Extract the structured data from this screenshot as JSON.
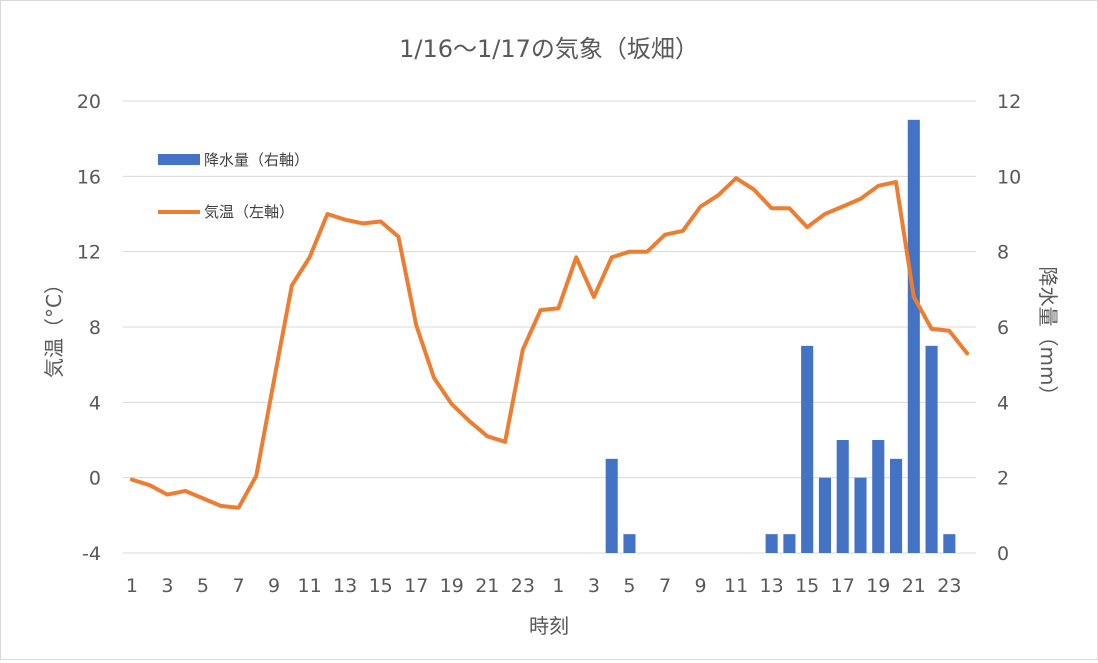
{
  "chart_data": {
    "type": "bar+line",
    "title": "1/16～1/17の気象（坂畑）",
    "xlabel": "時刻",
    "ylabel_left": "気温（°C）",
    "ylabel_right": "降水量（mm）",
    "ylim_left": [
      -4,
      20
    ],
    "yticks_left": [
      "20",
      "16",
      "12",
      "8",
      "4",
      "0",
      "-4"
    ],
    "ylim_right": [
      0,
      12
    ],
    "yticks_right": [
      "12",
      "10",
      "8",
      "6",
      "4",
      "2",
      "0"
    ],
    "grid": true,
    "legend_position": "top-left",
    "x_labels": [
      "1",
      "3",
      "5",
      "7",
      "9",
      "11",
      "13",
      "15",
      "17",
      "19",
      "21",
      "23",
      "1",
      "3",
      "5",
      "7",
      "9",
      "11",
      "13",
      "15",
      "17",
      "19",
      "21",
      "23"
    ],
    "hours": [
      1,
      2,
      3,
      4,
      5,
      6,
      7,
      8,
      9,
      10,
      11,
      12,
      13,
      14,
      15,
      16,
      17,
      18,
      19,
      20,
      21,
      22,
      23,
      24,
      1,
      2,
      3,
      4,
      5,
      6,
      7,
      8,
      9,
      10,
      11,
      12,
      13,
      14,
      15,
      16,
      17,
      18,
      19,
      20,
      21,
      22,
      23,
      24
    ],
    "series": [
      {
        "name": "降水量（右軸）",
        "type": "bar",
        "axis": "right",
        "color": "#4472c4",
        "values": [
          0,
          0,
          0,
          0,
          0,
          0,
          0,
          0,
          0,
          0,
          0,
          0,
          0,
          0,
          0,
          0,
          0,
          0,
          0,
          0,
          0,
          0,
          0,
          0,
          0,
          0,
          0,
          2.5,
          0.5,
          0,
          0,
          0,
          0,
          0,
          0,
          0,
          0.5,
          0.5,
          5.5,
          2,
          3,
          2,
          3,
          2.5,
          11.5,
          5.5,
          0.5,
          0
        ]
      },
      {
        "name": "気温（左軸）",
        "type": "line",
        "axis": "left",
        "color": "#ed7d31",
        "values": [
          -0.1,
          -0.4,
          -0.9,
          -0.7,
          -1.1,
          -1.5,
          -1.6,
          0.1,
          5.2,
          10.2,
          11.7,
          14.0,
          13.7,
          13.5,
          13.6,
          12.8,
          8.1,
          5.3,
          3.9,
          3.0,
          2.2,
          1.9,
          6.8,
          8.9,
          9.0,
          11.7,
          9.6,
          11.7,
          12.0,
          12.0,
          12.9,
          13.1,
          14.4,
          15.0,
          15.9,
          15.3,
          14.3,
          14.3,
          13.3,
          14.0,
          14.4,
          14.8,
          15.5,
          15.7,
          9.6,
          7.9,
          7.8,
          6.6
        ]
      }
    ]
  }
}
